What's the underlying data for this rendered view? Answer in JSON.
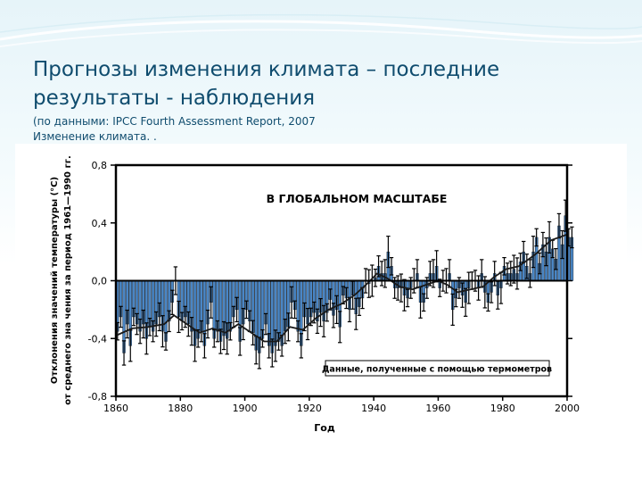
{
  "slide": {
    "title_line1": "Прогнозы изменения климата – последние",
    "title_line2": "результаты - наблюдения",
    "subtitle": "(по данными:  IPCC Fourth Assessment Report, 2007\nИзменение климата. ."
  },
  "colors": {
    "title": "#0f4c6e",
    "bar": "#4a86c5",
    "smooth_line": "#1a1a1a",
    "error_bar": "#000000"
  },
  "chart_data": {
    "type": "bar",
    "title": "В ГЛОБАЛЬНОМ МАСШТАБЕ",
    "xlabel": "Год",
    "ylabel_line1": "Отклонения значений температуры (°C)",
    "ylabel_line2": "от среднего зна чения за период 1961—1990 гг.",
    "legend_note": "Данные, полученные с помощью термометров",
    "xlim": [
      1860,
      2000
    ],
    "ylim": [
      -0.8,
      0.8
    ],
    "x_ticks": [
      "1860",
      "1880",
      "1900",
      "1920",
      "1940",
      "1960",
      "1980",
      "2000"
    ],
    "y_ticks": [
      {
        "value": 0.8,
        "label": "0,8"
      },
      {
        "value": 0.4,
        "label": "0,4"
      },
      {
        "value": 0.0,
        "label": "0,0"
      },
      {
        "value": -0.4,
        "label": "-0,4"
      },
      {
        "value": -0.8,
        "label": "-0,8"
      }
    ],
    "bar_start_year": 1860,
    "bar_values": [
      -0.35,
      -0.25,
      -0.5,
      -0.3,
      -0.45,
      -0.25,
      -0.3,
      -0.35,
      -0.3,
      -0.4,
      -0.32,
      -0.35,
      -0.3,
      -0.25,
      -0.35,
      -0.42,
      -0.28,
      -0.15,
      0.0,
      -0.25,
      -0.28,
      -0.25,
      -0.3,
      -0.35,
      -0.45,
      -0.4,
      -0.35,
      -0.45,
      -0.3,
      -0.15,
      -0.4,
      -0.35,
      -0.42,
      -0.38,
      -0.4,
      -0.35,
      -0.25,
      -0.2,
      -0.42,
      -0.3,
      -0.2,
      -0.28,
      -0.36,
      -0.48,
      -0.5,
      -0.4,
      -0.3,
      -0.45,
      -0.5,
      -0.45,
      -0.42,
      -0.45,
      -0.35,
      -0.32,
      -0.15,
      -0.2,
      -0.35,
      -0.45,
      -0.25,
      -0.3,
      -0.25,
      -0.22,
      -0.28,
      -0.22,
      -0.28,
      -0.22,
      -0.13,
      -0.24,
      -0.2,
      -0.32,
      -0.1,
      -0.12,
      -0.2,
      -0.1,
      -0.23,
      -0.18,
      -0.12,
      0.0,
      -0.02,
      0.0,
      0.02,
      0.1,
      0.05,
      0.05,
      0.2,
      0.1,
      -0.05,
      -0.05,
      -0.05,
      -0.1,
      -0.12,
      -0.05,
      0.0,
      0.05,
      -0.15,
      -0.15,
      -0.05,
      0.05,
      0.05,
      0.1,
      -0.05,
      0.0,
      0.0,
      0.05,
      -0.2,
      -0.12,
      -0.05,
      -0.1,
      -0.15,
      -0.05,
      0.0,
      0.0,
      -0.05,
      0.05,
      -0.08,
      -0.15,
      -0.08,
      0.05,
      -0.1,
      -0.05,
      0.1,
      0.05,
      0.05,
      0.08,
      0.05,
      0.13,
      0.2,
      0.1,
      0.05,
      0.2,
      0.3,
      0.12,
      0.25,
      0.2,
      0.3,
      0.22,
      0.15,
      0.38,
      0.25,
      0.45,
      0.3,
      0.3
    ],
    "smooth_points": [
      [
        1860,
        -0.38
      ],
      [
        1865,
        -0.33
      ],
      [
        1870,
        -0.32
      ],
      [
        1875,
        -0.3
      ],
      [
        1878,
        -0.24
      ],
      [
        1882,
        -0.3
      ],
      [
        1886,
        -0.36
      ],
      [
        1890,
        -0.33
      ],
      [
        1894,
        -0.36
      ],
      [
        1898,
        -0.3
      ],
      [
        1902,
        -0.36
      ],
      [
        1906,
        -0.42
      ],
      [
        1910,
        -0.42
      ],
      [
        1914,
        -0.32
      ],
      [
        1918,
        -0.34
      ],
      [
        1922,
        -0.26
      ],
      [
        1926,
        -0.2
      ],
      [
        1930,
        -0.16
      ],
      [
        1934,
        -0.1
      ],
      [
        1938,
        -0.02
      ],
      [
        1941,
        0.05
      ],
      [
        1944,
        0.02
      ],
      [
        1948,
        -0.04
      ],
      [
        1952,
        -0.06
      ],
      [
        1956,
        -0.03
      ],
      [
        1960,
        0.0
      ],
      [
        1963,
        -0.03
      ],
      [
        1966,
        -0.08
      ],
      [
        1970,
        -0.06
      ],
      [
        1974,
        -0.04
      ],
      [
        1977,
        0.02
      ],
      [
        1981,
        0.08
      ],
      [
        1985,
        0.1
      ],
      [
        1990,
        0.18
      ],
      [
        1995,
        0.28
      ],
      [
        2000,
        0.32
      ]
    ]
  }
}
